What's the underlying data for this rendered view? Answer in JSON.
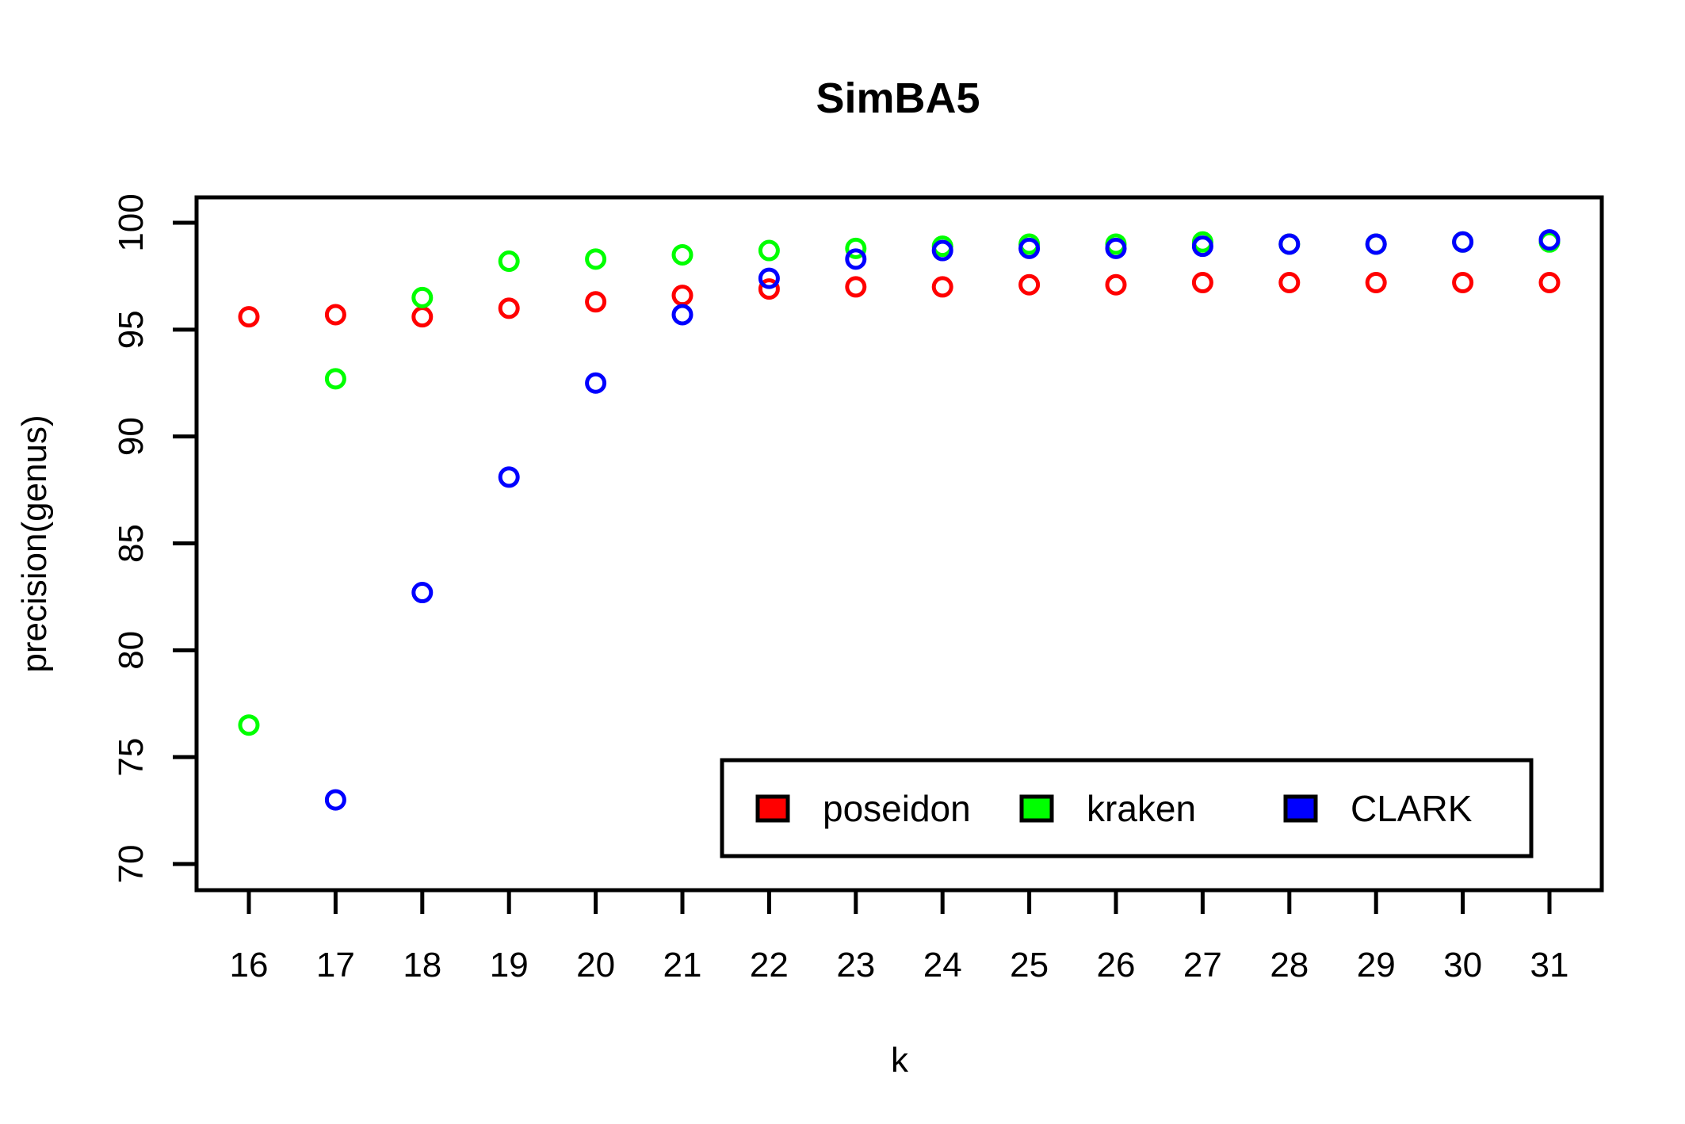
{
  "chart_data": {
    "type": "scatter",
    "title": "SimBA5",
    "xlabel": "k",
    "ylabel": "precision(genus)",
    "x": [
      16,
      17,
      18,
      19,
      20,
      21,
      22,
      23,
      24,
      25,
      26,
      27,
      28,
      29,
      30,
      31
    ],
    "xticks": [
      "16",
      "17",
      "18",
      "19",
      "20",
      "21",
      "22",
      "23",
      "24",
      "25",
      "26",
      "27",
      "28",
      "29",
      "30",
      "31"
    ],
    "yticks": [
      "70",
      "75",
      "80",
      "85",
      "90",
      "95",
      "100"
    ],
    "ylim": [
      70,
      100
    ],
    "grid": false,
    "legend_position": "bottom-right",
    "series": [
      {
        "name": "poseidon",
        "color": "#ff0000",
        "values": [
          95.6,
          95.7,
          95.6,
          96.0,
          96.3,
          96.6,
          96.9,
          97.0,
          97.0,
          97.1,
          97.1,
          97.2,
          97.2,
          97.2,
          97.2,
          97.2
        ]
      },
      {
        "name": "kraken",
        "color": "#00ff00",
        "values": [
          76.5,
          92.7,
          96.5,
          98.2,
          98.3,
          98.5,
          98.7,
          98.8,
          98.9,
          99.0,
          99.0,
          99.1,
          99.0,
          99.0,
          99.1,
          99.1
        ]
      },
      {
        "name": "CLARK",
        "color": "#0000ff",
        "values": [
          null,
          73.0,
          82.7,
          88.1,
          92.5,
          95.7,
          97.4,
          98.3,
          98.7,
          98.8,
          98.8,
          98.9,
          99.0,
          99.0,
          99.1,
          99.2
        ]
      }
    ]
  }
}
